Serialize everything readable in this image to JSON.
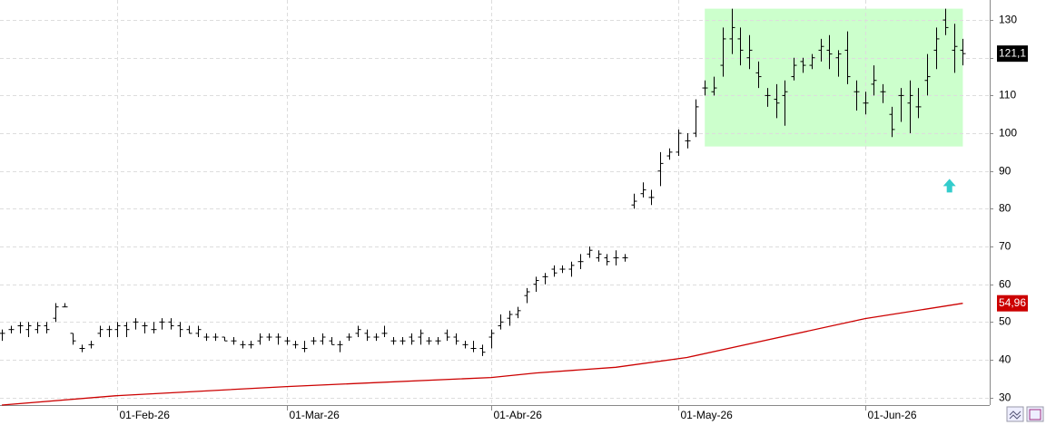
{
  "chart_data": {
    "type": "ohlc",
    "categories": [
      null,
      null,
      null,
      null,
      null,
      null,
      null,
      null,
      null,
      null,
      null,
      null,
      null,
      "01-Feb-26",
      null,
      null,
      null,
      null,
      null,
      null,
      null,
      null,
      null,
      null,
      null,
      null,
      null,
      null,
      null,
      null,
      null,
      null,
      "01-Mar-26",
      null,
      null,
      null,
      null,
      null,
      null,
      null,
      null,
      null,
      null,
      null,
      null,
      null,
      null,
      null,
      null,
      null,
      null,
      null,
      null,
      null,
      null,
      "01-Abr-26",
      null,
      null,
      null,
      null,
      null,
      null,
      null,
      null,
      null,
      null,
      null,
      null,
      null,
      null,
      null,
      null,
      null,
      null,
      null,
      null,
      "01-May-26",
      null,
      null,
      null,
      null,
      null,
      null,
      null,
      null,
      null,
      null,
      null,
      null,
      null,
      null,
      null,
      null,
      null,
      null,
      null,
      null,
      "01-Jun-26",
      null,
      null,
      null,
      null,
      null,
      null,
      null,
      null,
      null,
      null,
      null
    ],
    "ohlc": {
      "color": "#000000",
      "open": [
        47,
        48,
        49,
        48,
        48,
        49,
        51,
        54,
        47,
        43,
        44,
        47,
        48,
        48,
        49,
        50,
        49,
        48,
        50,
        50,
        49,
        48,
        47,
        46,
        46,
        46,
        45,
        44,
        44,
        45,
        46,
        46,
        45,
        44,
        43,
        45,
        45,
        45,
        44,
        46,
        47,
        47,
        46,
        47,
        45,
        45,
        46,
        46,
        45,
        45,
        47,
        46,
        44,
        43,
        43,
        46,
        49,
        51,
        52,
        57,
        60,
        62,
        64,
        64,
        64,
        66,
        68,
        67,
        67,
        67,
        67,
        81,
        84,
        83,
        90,
        94,
        95,
        98,
        100,
        112,
        111,
        118,
        125,
        125,
        120,
        116,
        110,
        109,
        110,
        115,
        119,
        118,
        122,
        122,
        120,
        122,
        111,
        108,
        113,
        111,
        105,
        110,
        108,
        107,
        114,
        122,
        130,
        122,
        122
      ],
      "high": [
        48,
        49,
        50,
        50,
        50,
        50,
        55,
        55,
        47,
        44,
        45,
        49,
        49,
        50,
        50,
        51,
        50,
        50,
        51,
        51,
        50,
        49,
        49,
        47,
        47,
        46,
        46,
        45,
        45,
        47,
        47,
        47,
        46,
        45,
        45,
        46,
        47,
        46,
        45,
        47,
        49,
        48,
        47,
        49,
        46,
        46,
        47,
        48,
        46,
        46,
        48,
        47,
        45,
        45,
        44,
        48,
        52,
        53,
        54,
        59,
        62,
        63,
        65,
        65,
        66,
        68,
        70,
        69,
        68,
        69,
        68,
        84,
        87,
        85,
        95,
        96,
        101,
        100,
        109,
        114,
        115,
        128,
        133,
        128,
        126,
        119,
        112,
        113,
        114,
        120,
        120,
        121,
        125,
        126,
        122,
        127,
        114,
        111,
        118,
        113,
        107,
        112,
        114,
        112,
        121,
        128,
        133,
        129,
        125
      ],
      "low": [
        45,
        47,
        47,
        46,
        47,
        47,
        50,
        54,
        44,
        42,
        43,
        46,
        46,
        46,
        46,
        48,
        47,
        47,
        48,
        48,
        46,
        47,
        46,
        45,
        45,
        45,
        44,
        43,
        43,
        44,
        45,
        44,
        44,
        43,
        42,
        44,
        44,
        44,
        42,
        45,
        46,
        45,
        45,
        46,
        44,
        44,
        44,
        44,
        44,
        44,
        45,
        44,
        43,
        42,
        41,
        43,
        48,
        49,
        51,
        55,
        58,
        60,
        62,
        63,
        62,
        64,
        67,
        66,
        65,
        65,
        66,
        80,
        83,
        81,
        86,
        93,
        94,
        96,
        99,
        110,
        110,
        115,
        121,
        118,
        117,
        112,
        107,
        104,
        102,
        114,
        116,
        117,
        119,
        117,
        115,
        113,
        106,
        105,
        110,
        108,
        99,
        103,
        100,
        104,
        110,
        117,
        126,
        116,
        118
      ],
      "close": [
        47,
        48,
        49,
        49,
        49,
        48,
        54,
        54,
        45,
        43,
        44,
        48,
        48,
        49,
        48,
        50,
        49,
        48,
        50,
        49,
        48,
        47,
        48,
        46,
        46,
        45,
        45,
        44,
        44,
        46,
        46,
        46,
        45,
        44,
        43,
        45,
        46,
        44,
        44,
        46,
        48,
        46,
        46,
        47,
        45,
        45,
        45,
        47,
        45,
        45,
        46,
        45,
        44,
        43,
        42,
        47,
        50,
        52,
        53,
        58,
        61,
        62,
        63,
        64,
        65,
        66,
        69,
        68,
        66,
        67,
        67,
        82,
        85,
        83,
        92,
        95,
        100,
        98,
        107,
        112,
        112,
        125,
        128,
        122,
        122,
        115,
        110,
        108,
        111,
        118,
        118,
        120,
        123,
        121,
        121,
        115,
        111,
        108,
        114,
        111,
        101,
        110,
        110,
        107,
        115,
        125,
        128,
        123,
        121.1
      ],
      "last_label": {
        "value": 121.1,
        "label": "121,1"
      }
    },
    "ma": {
      "color": "#cc0000",
      "x": [
        0,
        13,
        32,
        55,
        60,
        69,
        77,
        97,
        108
      ],
      "values": [
        28,
        30.5,
        32.9,
        35.3,
        36.5,
        38,
        40.6,
        50.9,
        54.96
      ],
      "last_label": {
        "value": 54.96,
        "label": "54,96"
      }
    },
    "highlight": {
      "x": [
        79,
        108
      ],
      "y": [
        96.5,
        133
      ],
      "color": "#ccffcc"
    },
    "arrow": {
      "x": 106.5,
      "y": 86,
      "color": "#33cccc"
    },
    "ylim": [
      28,
      135.3
    ],
    "yticks": [
      30,
      40,
      50,
      60,
      70,
      80,
      90,
      100,
      110,
      120,
      130
    ],
    "grid": true
  }
}
